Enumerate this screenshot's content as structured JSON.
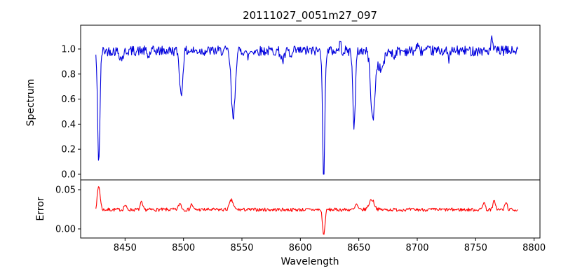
{
  "title": "20111027_0051m27_097",
  "axes": {
    "xlabel": "Wavelength",
    "spectrum_ylabel": "Spectrum",
    "error_ylabel": "Error"
  },
  "chart_data": [
    {
      "type": "line",
      "panel": "spectrum",
      "series_name": "spectrum",
      "color": "#0000dd",
      "xlim": [
        8412,
        8805
      ],
      "ylim": [
        -0.045,
        1.19
      ],
      "yticks": [
        0.0,
        0.2,
        0.4,
        0.6,
        0.8,
        1.0
      ],
      "ytick_labels": [
        "0.0",
        "0.2",
        "0.4",
        "0.6",
        "0.8",
        "1.0"
      ],
      "xticks": [
        8450,
        8500,
        8550,
        8600,
        8650,
        8700,
        8750,
        8800
      ],
      "xtick_labels": [
        "8450",
        "8500",
        "8550",
        "8600",
        "8650",
        "8700",
        "8750",
        "8800"
      ],
      "show_xtick_labels": false,
      "x_range": [
        8425,
        8786
      ],
      "n_points": 650,
      "continuum": 0.985,
      "noise_amp": 0.04,
      "noise_seed": 42,
      "clamp_min": 0.0,
      "features": [
        {
          "center": 8427.5,
          "depth": 0.88,
          "width": 1.0
        },
        {
          "center": 8447,
          "depth": 0.06,
          "width": 1.5
        },
        {
          "center": 8470,
          "depth": 0.05,
          "width": 1.0
        },
        {
          "center": 8498,
          "depth": 0.36,
          "width": 1.3
        },
        {
          "center": 8542.5,
          "depth": 0.55,
          "width": 1.6
        },
        {
          "center": 8555,
          "depth": 0.05,
          "width": 1.0
        },
        {
          "center": 8585,
          "depth": 0.08,
          "width": 1.5
        },
        {
          "center": 8592,
          "depth": 0.06,
          "width": 1.0
        },
        {
          "center": 8620,
          "depth": 1.05,
          "width": 0.9
        },
        {
          "center": 8634,
          "depth": -0.06,
          "width": 0.8
        },
        {
          "center": 8646,
          "depth": 0.6,
          "width": 1.1
        },
        {
          "center": 8662,
          "depth": 0.55,
          "width": 1.8
        },
        {
          "center": 8669,
          "depth": 0.15,
          "width": 2.5
        },
        {
          "center": 8680,
          "depth": 0.05,
          "width": 1.0
        },
        {
          "center": 8700,
          "depth": -0.05,
          "width": 0.8
        },
        {
          "center": 8727,
          "depth": 0.06,
          "width": 1.0
        },
        {
          "center": 8764,
          "depth": -0.09,
          "width": 0.8
        }
      ]
    },
    {
      "type": "line",
      "panel": "error",
      "series_name": "error",
      "color": "#ff0000",
      "xlim": [
        8412,
        8805
      ],
      "ylim": [
        -0.0116,
        0.0625
      ],
      "yticks": [
        0.0,
        0.05
      ],
      "ytick_labels": [
        "0.00",
        "0.05"
      ],
      "xticks": [
        8450,
        8500,
        8550,
        8600,
        8650,
        8700,
        8750,
        8800
      ],
      "xtick_labels": [
        "8450",
        "8500",
        "8550",
        "8600",
        "8650",
        "8700",
        "8750",
        "8800"
      ],
      "show_xtick_labels": true,
      "x_range": [
        8425,
        8786
      ],
      "n_points": 650,
      "continuum": 0.0245,
      "noise_amp": 0.0022,
      "noise_seed": 7,
      "features": [
        {
          "center": 8427.5,
          "depth": -0.03,
          "width": 1.2
        },
        {
          "center": 8450,
          "depth": -0.006,
          "width": 1.0
        },
        {
          "center": 8464,
          "depth": -0.009,
          "width": 1.0
        },
        {
          "center": 8497,
          "depth": -0.008,
          "width": 1.2
        },
        {
          "center": 8507,
          "depth": -0.007,
          "width": 1.0
        },
        {
          "center": 8541,
          "depth": -0.012,
          "width": 1.6
        },
        {
          "center": 8620,
          "depth": 0.033,
          "width": 1.0
        },
        {
          "center": 8648,
          "depth": -0.007,
          "width": 1.0
        },
        {
          "center": 8661,
          "depth": -0.013,
          "width": 2.2
        },
        {
          "center": 8757,
          "depth": -0.01,
          "width": 1.0
        },
        {
          "center": 8766,
          "depth": -0.012,
          "width": 1.0
        },
        {
          "center": 8776,
          "depth": -0.009,
          "width": 1.0
        }
      ]
    }
  ]
}
